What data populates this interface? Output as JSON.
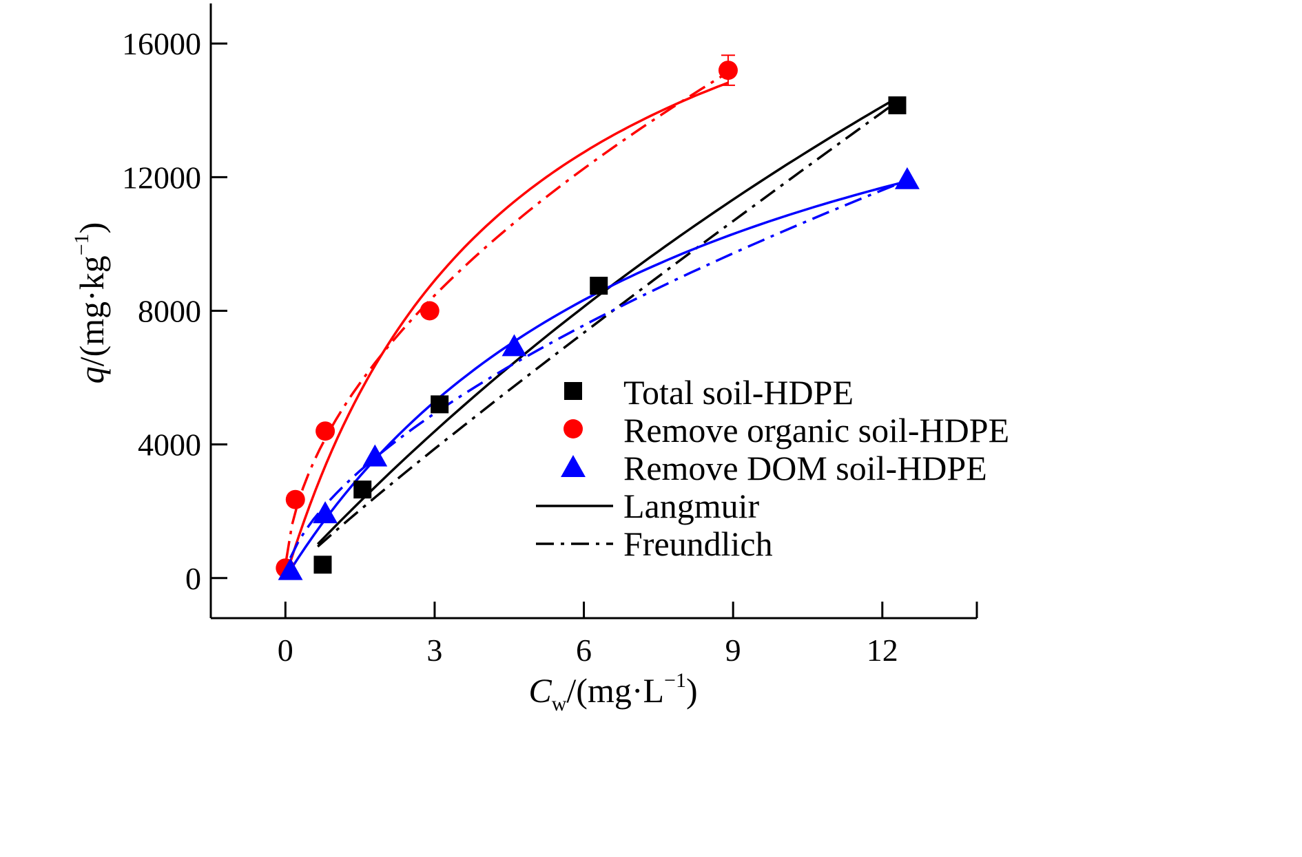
{
  "chart_data": {
    "type": "scatter",
    "title": "",
    "xlabel": {
      "prefix": "",
      "italic": "C",
      "sub": "w",
      "unit_pre": "/(mg·L",
      "sup": "−1",
      "unit_post": ")"
    },
    "ylabel": {
      "italic": "q",
      "unit_pre": "/(mg·kg",
      "sup": "−1",
      "unit_post": ")"
    },
    "xlim": [
      -1.5,
      13.9
    ],
    "ylim": [
      -1200,
      17200
    ],
    "x_ticks": [
      0,
      3,
      6,
      9,
      12
    ],
    "y_ticks": [
      0,
      4000,
      8000,
      12000,
      16000
    ],
    "x_tick_labels": [
      "0",
      "3",
      "6",
      "9",
      "12"
    ],
    "y_tick_labels": [
      "0",
      "4000",
      "8000",
      "12000",
      "16000"
    ],
    "grid": false,
    "legend_position": "lower-right",
    "series": [
      {
        "name": "Total soil-HDPE",
        "marker": "square",
        "color": "#000000",
        "x": [
          0.75,
          1.55,
          3.1,
          6.3,
          12.3
        ],
        "y": [
          400,
          2650,
          5200,
          8750,
          14150
        ]
      },
      {
        "name": "Remove organic soil-HDPE",
        "marker": "circle",
        "color": "#ff0000",
        "x": [
          0.0,
          0.2,
          0.8,
          2.9,
          8.9
        ],
        "y": [
          300,
          2350,
          4400,
          8000,
          15200
        ],
        "error_y": [
          0,
          0,
          0,
          0,
          450
        ]
      },
      {
        "name": "Remove DOM soil-HDPE",
        "marker": "triangle",
        "color": "#0000ff",
        "x": [
          0.1,
          0.8,
          1.8,
          4.6,
          12.5
        ],
        "y": [
          250,
          1950,
          3650,
          6950,
          11950
        ]
      }
    ],
    "fit_lines": [
      {
        "model": "Langmuir",
        "series": "Total soil-HDPE",
        "style": "solid",
        "color": "#000000",
        "x_range": [
          0.65,
          12.3
        ],
        "qmax": 54000,
        "KL": 0.0295
      },
      {
        "model": "Freundlich",
        "series": "Total soil-HDPE",
        "style": "dashdot",
        "color": "#000000",
        "x_range": [
          0.65,
          12.4
        ],
        "KF": 1400,
        "n_inv": 0.925
      },
      {
        "model": "Langmuir",
        "series": "Remove organic soil-HDPE",
        "style": "solid",
        "color": "#ff0000",
        "x_range": [
          0.05,
          8.9
        ],
        "qmax": 22400,
        "KL": 0.22
      },
      {
        "model": "Freundlich",
        "series": "Remove organic soil-HDPE",
        "style": "dashdot",
        "color": "#ff0000",
        "x_range": [
          0.02,
          8.9
        ],
        "KF": 4700,
        "n_inv": 0.535
      },
      {
        "model": "Langmuir",
        "series": "Remove DOM soil-HDPE",
        "style": "solid",
        "color": "#0000ff",
        "x_range": [
          0.1,
          12.5
        ],
        "qmax": 19600,
        "KL": 0.123
      },
      {
        "model": "Freundlich",
        "series": "Remove DOM soil-HDPE",
        "style": "dashdot",
        "color": "#0000ff",
        "x_range": [
          0.1,
          12.5
        ],
        "KF": 2500,
        "n_inv": 0.618
      }
    ],
    "legend_entries": [
      {
        "label": "Total soil-HDPE",
        "kind": "square",
        "color": "#000000"
      },
      {
        "label": "Remove organic soil-HDPE",
        "kind": "circle",
        "color": "#ff0000"
      },
      {
        "label": "Remove DOM soil-HDPE",
        "kind": "triangle",
        "color": "#0000ff"
      },
      {
        "label": "Langmuir",
        "kind": "solid-line",
        "color": "#000000"
      },
      {
        "label": "Freundlich",
        "kind": "dashdot-line",
        "color": "#000000"
      }
    ]
  }
}
